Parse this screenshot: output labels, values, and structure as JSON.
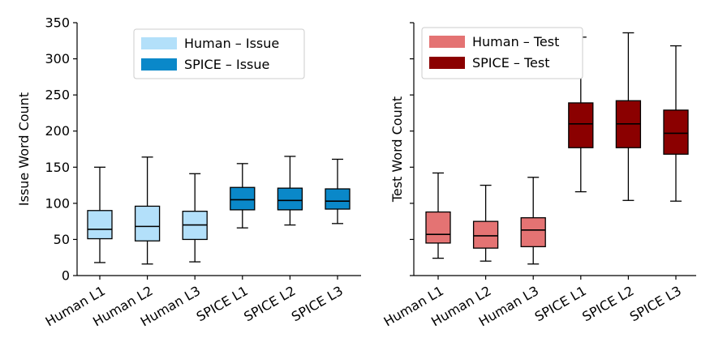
{
  "chart_data": [
    {
      "type": "box",
      "title": "",
      "xlabel": "",
      "ylabel": "Issue Word Count",
      "ylim": [
        0,
        350
      ],
      "yticks": [
        0,
        50,
        100,
        150,
        200,
        250,
        300,
        350
      ],
      "show_ytick_labels": true,
      "categories": [
        "Human L1",
        "Human L2",
        "Human L3",
        "SPICE L1",
        "SPICE L2",
        "SPICE L3"
      ],
      "boxes": [
        {
          "name": "Human L1",
          "series": "Human – Issue",
          "min": 18,
          "q1": 51,
          "median": 64,
          "q3": 90,
          "max": 150
        },
        {
          "name": "Human L2",
          "series": "Human – Issue",
          "min": 16,
          "q1": 48,
          "median": 68,
          "q3": 96,
          "max": 164
        },
        {
          "name": "Human L3",
          "series": "Human – Issue",
          "min": 19,
          "q1": 50,
          "median": 70,
          "q3": 89,
          "max": 141
        },
        {
          "name": "SPICE L1",
          "series": "SPICE – Issue",
          "min": 66,
          "q1": 91,
          "median": 105,
          "q3": 122,
          "max": 155
        },
        {
          "name": "SPICE L2",
          "series": "SPICE – Issue",
          "min": 70,
          "q1": 91,
          "median": 104,
          "q3": 121,
          "max": 165
        },
        {
          "name": "SPICE L3",
          "series": "SPICE – Issue",
          "min": 72,
          "q1": 92,
          "median": 103,
          "q3": 120,
          "max": 161
        }
      ],
      "legend": {
        "placement": "top-center",
        "items": [
          {
            "label": "Human – Issue",
            "color": "#b3e0fa"
          },
          {
            "label": "SPICE – Issue",
            "color": "#0a88c9"
          }
        ]
      }
    },
    {
      "type": "box",
      "title": "",
      "xlabel": "",
      "ylabel": "Test Word Count",
      "ylim": [
        0,
        350
      ],
      "yticks": [
        0,
        50,
        100,
        150,
        200,
        250,
        300,
        350
      ],
      "show_ytick_labels": false,
      "categories": [
        "Human L1",
        "Human L2",
        "Human L3",
        "SPICE L1",
        "SPICE L2",
        "SPICE L3"
      ],
      "boxes": [
        {
          "name": "Human L1",
          "series": "Human – Test",
          "min": 24,
          "q1": 45,
          "median": 57,
          "q3": 88,
          "max": 142
        },
        {
          "name": "Human L2",
          "series": "Human – Test",
          "min": 20,
          "q1": 38,
          "median": 55,
          "q3": 75,
          "max": 125
        },
        {
          "name": "Human L3",
          "series": "Human – Test",
          "min": 16,
          "q1": 40,
          "median": 63,
          "q3": 80,
          "max": 136
        },
        {
          "name": "SPICE L1",
          "series": "SPICE – Test",
          "min": 116,
          "q1": 177,
          "median": 210,
          "q3": 239,
          "max": 330
        },
        {
          "name": "SPICE L2",
          "series": "SPICE – Test",
          "min": 104,
          "q1": 177,
          "median": 210,
          "q3": 242,
          "max": 336
        },
        {
          "name": "SPICE L3",
          "series": "SPICE – Test",
          "min": 103,
          "q1": 168,
          "median": 197,
          "q3": 229,
          "max": 318
        }
      ],
      "legend": {
        "placement": "top-left",
        "items": [
          {
            "label": "Human – Test",
            "color": "#e47373"
          },
          {
            "label": "SPICE – Test",
            "color": "#8b0000"
          }
        ]
      }
    }
  ]
}
